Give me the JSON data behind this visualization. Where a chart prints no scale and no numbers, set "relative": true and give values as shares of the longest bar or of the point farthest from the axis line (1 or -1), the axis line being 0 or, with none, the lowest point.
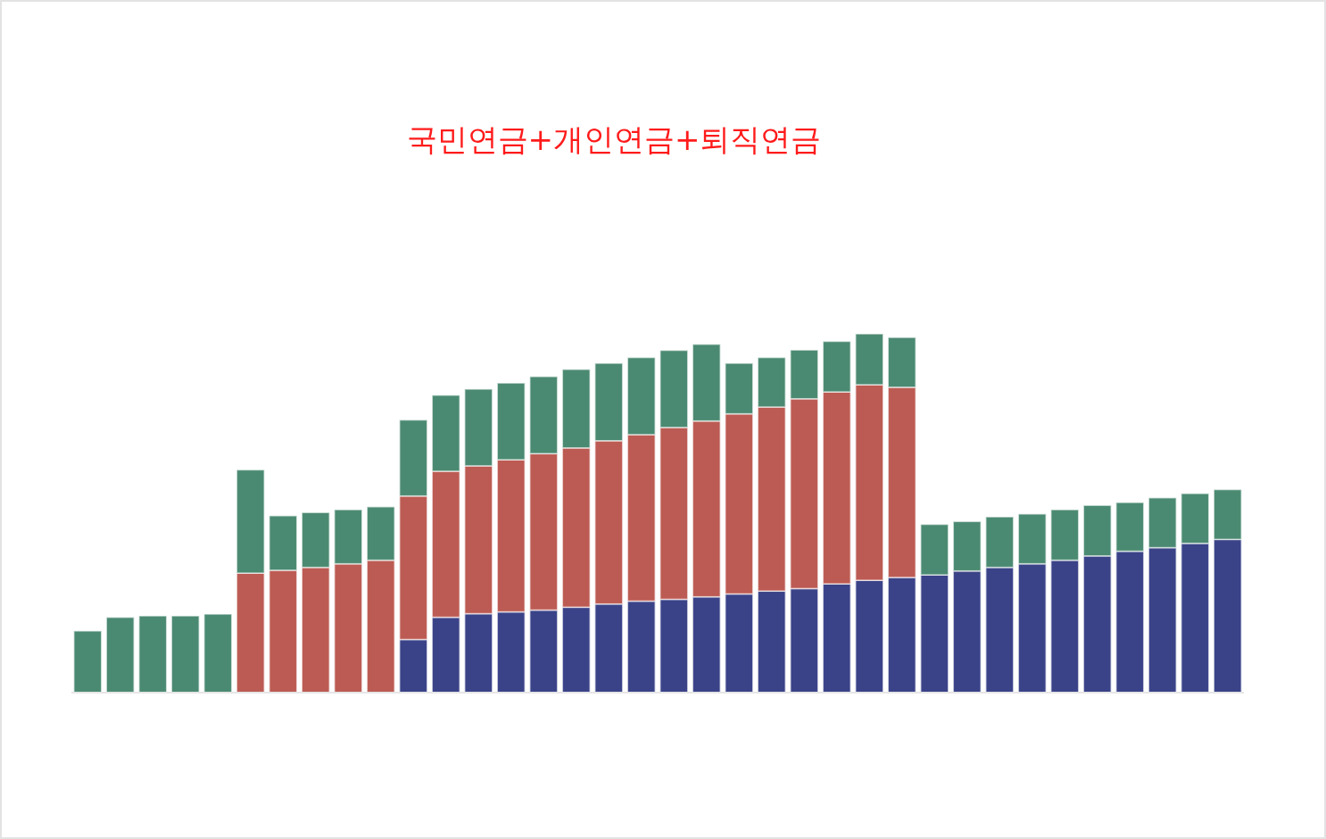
{
  "chart_data": {
    "type": "bar",
    "title": "국민연금+개인연금+퇴직연금",
    "relative": true,
    "stacked": true,
    "categories": [
      null,
      null,
      null,
      null,
      null,
      null,
      null,
      null,
      null,
      null,
      null,
      null,
      null,
      null,
      null,
      null,
      null,
      null,
      null,
      null,
      null,
      null,
      null,
      null,
      null,
      null,
      null,
      null,
      null,
      null,
      null,
      null,
      null,
      null,
      null,
      null
    ],
    "series": [
      {
        "color": "#3a4388",
        "values": [
          null,
          null,
          null,
          null,
          null,
          null,
          null,
          null,
          null,
          null,
          0.148,
          0.21,
          0.22,
          0.225,
          0.23,
          0.238,
          0.247,
          0.255,
          0.26,
          0.267,
          0.275,
          0.283,
          0.29,
          0.303,
          0.313,
          0.321,
          0.328,
          0.339,
          0.349,
          0.359,
          0.369,
          0.381,
          0.394,
          0.404,
          0.416,
          0.427
        ]
      },
      {
        "color": "#bc5b53",
        "values": [
          null,
          null,
          null,
          null,
          null,
          0.333,
          0.341,
          0.349,
          0.359,
          0.369,
          0.4,
          0.407,
          0.412,
          0.424,
          0.436,
          0.444,
          0.455,
          0.464,
          0.479,
          0.49,
          0.502,
          0.513,
          0.529,
          0.535,
          0.545,
          0.53,
          null,
          null,
          null,
          null,
          null,
          null,
          null,
          null,
          null,
          null
        ]
      },
      {
        "color": "#4b8a72",
        "values": [
          0.172,
          0.21,
          0.214,
          0.214,
          0.219,
          0.288,
          0.152,
          0.153,
          0.151,
          0.149,
          0.212,
          0.212,
          0.214,
          0.214,
          0.215,
          0.219,
          0.216,
          0.215,
          0.215,
          0.214,
          0.141,
          0.138,
          0.136,
          0.141,
          0.142,
          0.139,
          0.141,
          0.138,
          0.141,
          0.139,
          0.141,
          0.141,
          0.136,
          0.139,
          0.139,
          0.139
        ]
      }
    ]
  }
}
